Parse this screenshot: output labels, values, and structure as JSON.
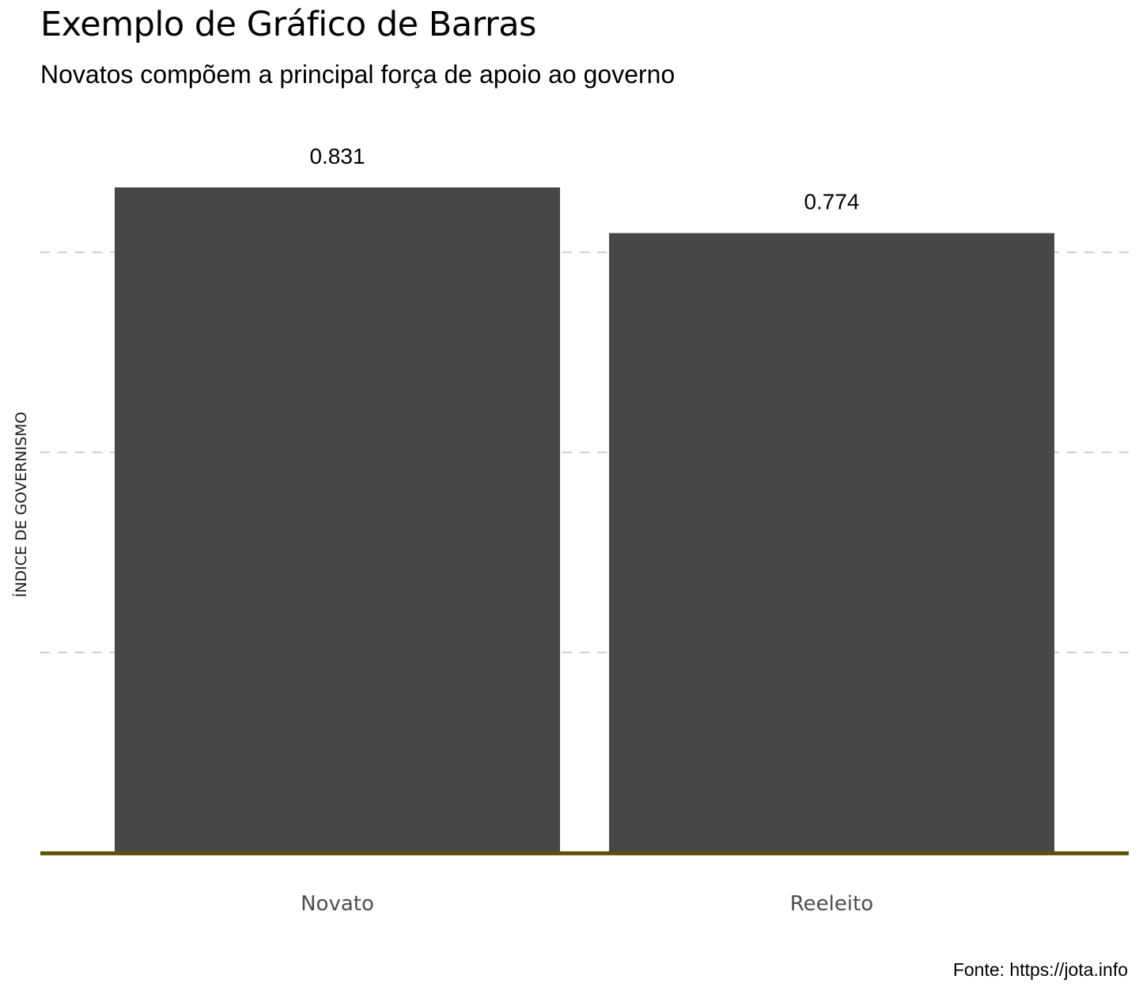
{
  "chart_data": {
    "type": "bar",
    "title": "Exemplo de Gráfico de Barras",
    "subtitle": "Novatos compõem a principal força de apoio ao governo",
    "xlabel": "",
    "ylabel": "ÍNDICE DE GOVERNISMO",
    "caption": "Fonte: https://jota.info",
    "categories": [
      "Novato",
      "Reeleito"
    ],
    "values": [
      0.831,
      0.774
    ],
    "value_labels": [
      "0.831",
      "0.774"
    ],
    "ylim": [
      0,
      0.831
    ],
    "y_gridlines": [
      0.25,
      0.5,
      0.75
    ],
    "y_tick_labels_shown": false,
    "grid": "horizontal dashed",
    "legend": "none",
    "colors": {
      "bar": "#474747",
      "baseline": "#5a5000",
      "grid": "#b3b3b3"
    }
  }
}
